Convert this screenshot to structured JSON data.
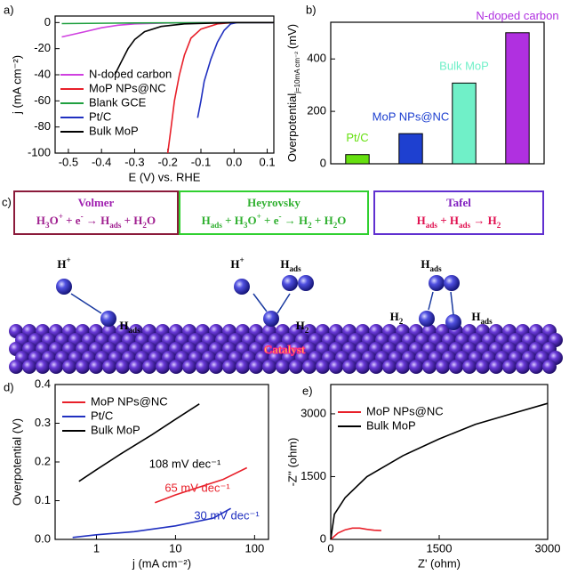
{
  "chart_data": [
    {
      "type": "line",
      "panel_label": "a)",
      "xlabel": "E (V) vs. RHE",
      "ylabel": "j (mA cm⁻²)",
      "xlim": [
        -0.54,
        0.12
      ],
      "xticks": [
        -0.5,
        -0.4,
        -0.3,
        -0.2,
        -0.1,
        {
          "value": 0,
          "label": "0.0"
        },
        0.1
      ],
      "ylim": [
        -100,
        5
      ],
      "yticks": [
        0,
        -20,
        -40,
        -60,
        -80,
        -100
      ],
      "series": [
        {
          "name": "N-doped carbon",
          "color": "#d040e0",
          "x": [
            -0.52,
            -0.45,
            -0.4,
            -0.35,
            -0.3,
            -0.2,
            0,
            0.12
          ],
          "values": [
            -11,
            -7,
            -4,
            -2,
            -1,
            -0.3,
            0,
            0
          ]
        },
        {
          "name": "MoP NPs@NC",
          "color": "#e8202a",
          "x": [
            -0.2,
            -0.19,
            -0.18,
            -0.165,
            -0.15,
            -0.13,
            -0.1,
            -0.05,
            0,
            0.12
          ],
          "values": [
            -100,
            -80,
            -60,
            -40,
            -25,
            -12,
            -5,
            -1,
            0,
            0
          ]
        },
        {
          "name": "Blank GCE",
          "color": "#20a040",
          "x": [
            -0.52,
            -0.3,
            0.12
          ],
          "values": [
            -0.8,
            -0.3,
            0
          ]
        },
        {
          "name": "Pt/C",
          "color": "#2030c0",
          "x": [
            -0.11,
            -0.1,
            -0.09,
            -0.07,
            -0.05,
            -0.03,
            -0.01,
            0.01,
            0.12
          ],
          "values": [
            -73,
            -60,
            -45,
            -28,
            -15,
            -6,
            -1,
            0,
            0
          ]
        },
        {
          "name": "Bulk MoP",
          "color": "#000000",
          "x": [
            -0.36,
            -0.34,
            -0.32,
            -0.3,
            -0.27,
            -0.22,
            -0.15,
            0,
            0.12
          ],
          "values": [
            -40,
            -30,
            -20,
            -13,
            -7,
            -3,
            -1,
            0,
            0
          ]
        }
      ]
    },
    {
      "type": "bar",
      "panel_label": "b)",
      "ylabel": "Overpotential",
      "ylabel_sub": "j=10mA cm⁻²",
      "ylabel_unit": "(mV)",
      "ylim": [
        0,
        540
      ],
      "yticks": [
        0,
        200,
        400
      ],
      "categories": [
        "Pt/C",
        "MoP NPs@NC",
        "Bulk MoP",
        "N-doped carbon"
      ],
      "values": [
        35,
        115,
        308,
        500
      ],
      "colors": [
        "#66e010",
        "#1e40d0",
        "#70f0c8",
        "#b030e0"
      ]
    },
    {
      "type": "line",
      "panel_label": "d)",
      "xlabel": "j (mA cm⁻²)",
      "ylabel": "Overpotential (V)",
      "xlog": true,
      "xlim": [
        0.3,
        150
      ],
      "xticks": [
        1,
        10,
        100
      ],
      "ylim": [
        0,
        0.4
      ],
      "yticks": [
        {
          "value": 0,
          "label": "0.0"
        },
        0.1,
        0.2,
        0.3,
        0.4
      ],
      "series": [
        {
          "name": "MoP NPs@NC",
          "color": "#e8202a",
          "x": [
            5.5,
            10,
            20,
            40,
            80
          ],
          "values": [
            0.095,
            0.115,
            0.135,
            0.155,
            0.185
          ]
        },
        {
          "name": "Pt/C",
          "color": "#2030c0",
          "x": [
            0.5,
            1,
            3,
            10,
            30,
            50
          ],
          "values": [
            0.005,
            0.012,
            0.02,
            0.035,
            0.055,
            0.08
          ]
        },
        {
          "name": "Bulk MoP",
          "color": "#000000",
          "x": [
            0.6,
            1,
            2,
            5,
            10,
            20
          ],
          "values": [
            0.15,
            0.18,
            0.22,
            0.27,
            0.31,
            0.35
          ]
        }
      ],
      "annotations": [
        {
          "text": "108 mV dec⁻¹",
          "color": "#000000"
        },
        {
          "text": "65 mV dec⁻¹",
          "color": "#e8202a"
        },
        {
          "text": "30 mV dec⁻¹",
          "color": "#2030c0"
        }
      ]
    },
    {
      "type": "line",
      "panel_label": "e)",
      "xlabel": "Z' (ohm)",
      "ylabel": "-Z'' (ohm)",
      "xlim": [
        0,
        3000
      ],
      "xticks": [
        0,
        1500,
        3000
      ],
      "ylim": [
        0,
        3700
      ],
      "yticks": [
        0,
        1500,
        3000
      ],
      "series": [
        {
          "name": "MoP NPs@NC",
          "color": "#e8202a",
          "x": [
            0,
            100,
            200,
            300,
            400,
            500,
            600,
            700
          ],
          "values": [
            0,
            150,
            230,
            270,
            270,
            240,
            220,
            210
          ]
        },
        {
          "name": "Bulk MoP",
          "color": "#000000",
          "x": [
            0,
            50,
            200,
            500,
            1000,
            1500,
            2000,
            2500,
            3000
          ],
          "values": [
            0,
            600,
            1000,
            1500,
            2000,
            2400,
            2750,
            3000,
            3250
          ]
        }
      ]
    }
  ],
  "diagram": {
    "panel_label": "c)",
    "steps": [
      {
        "title": "Volmer",
        "equation": [
          {
            "text": "H"
          },
          {
            "text": "3",
            "sub": true
          },
          {
            "text": "O"
          },
          {
            "text": "+",
            "sup": true
          },
          {
            "text": " + e"
          },
          {
            "text": "-",
            "sup": true
          },
          {
            "text": " → H"
          },
          {
            "text": "ads",
            "sub": true
          },
          {
            "text": " + H"
          },
          {
            "text": "2",
            "sub": true
          },
          {
            "text": "O"
          }
        ]
      },
      {
        "title": "Heyrovsky",
        "equation": [
          {
            "text": "H"
          },
          {
            "text": "ads",
            "sub": true
          },
          {
            "text": " + H"
          },
          {
            "text": "3",
            "sub": true
          },
          {
            "text": "O"
          },
          {
            "text": "+",
            "sup": true
          },
          {
            "text": " + e"
          },
          {
            "text": "-",
            "sup": true
          },
          {
            "text": " → H"
          },
          {
            "text": "2",
            "sub": true
          },
          {
            "text": " + H"
          },
          {
            "text": "2",
            "sub": true
          },
          {
            "text": "O"
          }
        ]
      },
      {
        "title": "Tafel",
        "equation": [
          {
            "text": "H"
          },
          {
            "text": "ads",
            "sub": true
          },
          {
            "text": " + H"
          },
          {
            "text": "ads",
            "sub": true
          },
          {
            "text": " →   H"
          },
          {
            "text": "2",
            "sub": true
          }
        ]
      }
    ],
    "labels": [
      [
        {
          "text": "H"
        },
        {
          "text": "+",
          "sup": true
        }
      ],
      [
        {
          "text": "H"
        },
        {
          "text": "ads",
          "sub": true
        }
      ],
      [
        {
          "text": "H"
        },
        {
          "text": "+",
          "sup": true
        }
      ],
      [
        {
          "text": "H"
        },
        {
          "text": "2",
          "sub": true
        }
      ],
      [
        {
          "text": "H"
        },
        {
          "text": "ads",
          "sub": true
        }
      ],
      [
        {
          "text": "H"
        },
        {
          "text": "2",
          "sub": true
        }
      ],
      [
        {
          "text": "H"
        },
        {
          "text": "ads",
          "sub": true
        }
      ],
      [
        {
          "text": "H"
        },
        {
          "text": "ads",
          "sub": true
        }
      ]
    ],
    "catalyst": "Catalyst"
  }
}
